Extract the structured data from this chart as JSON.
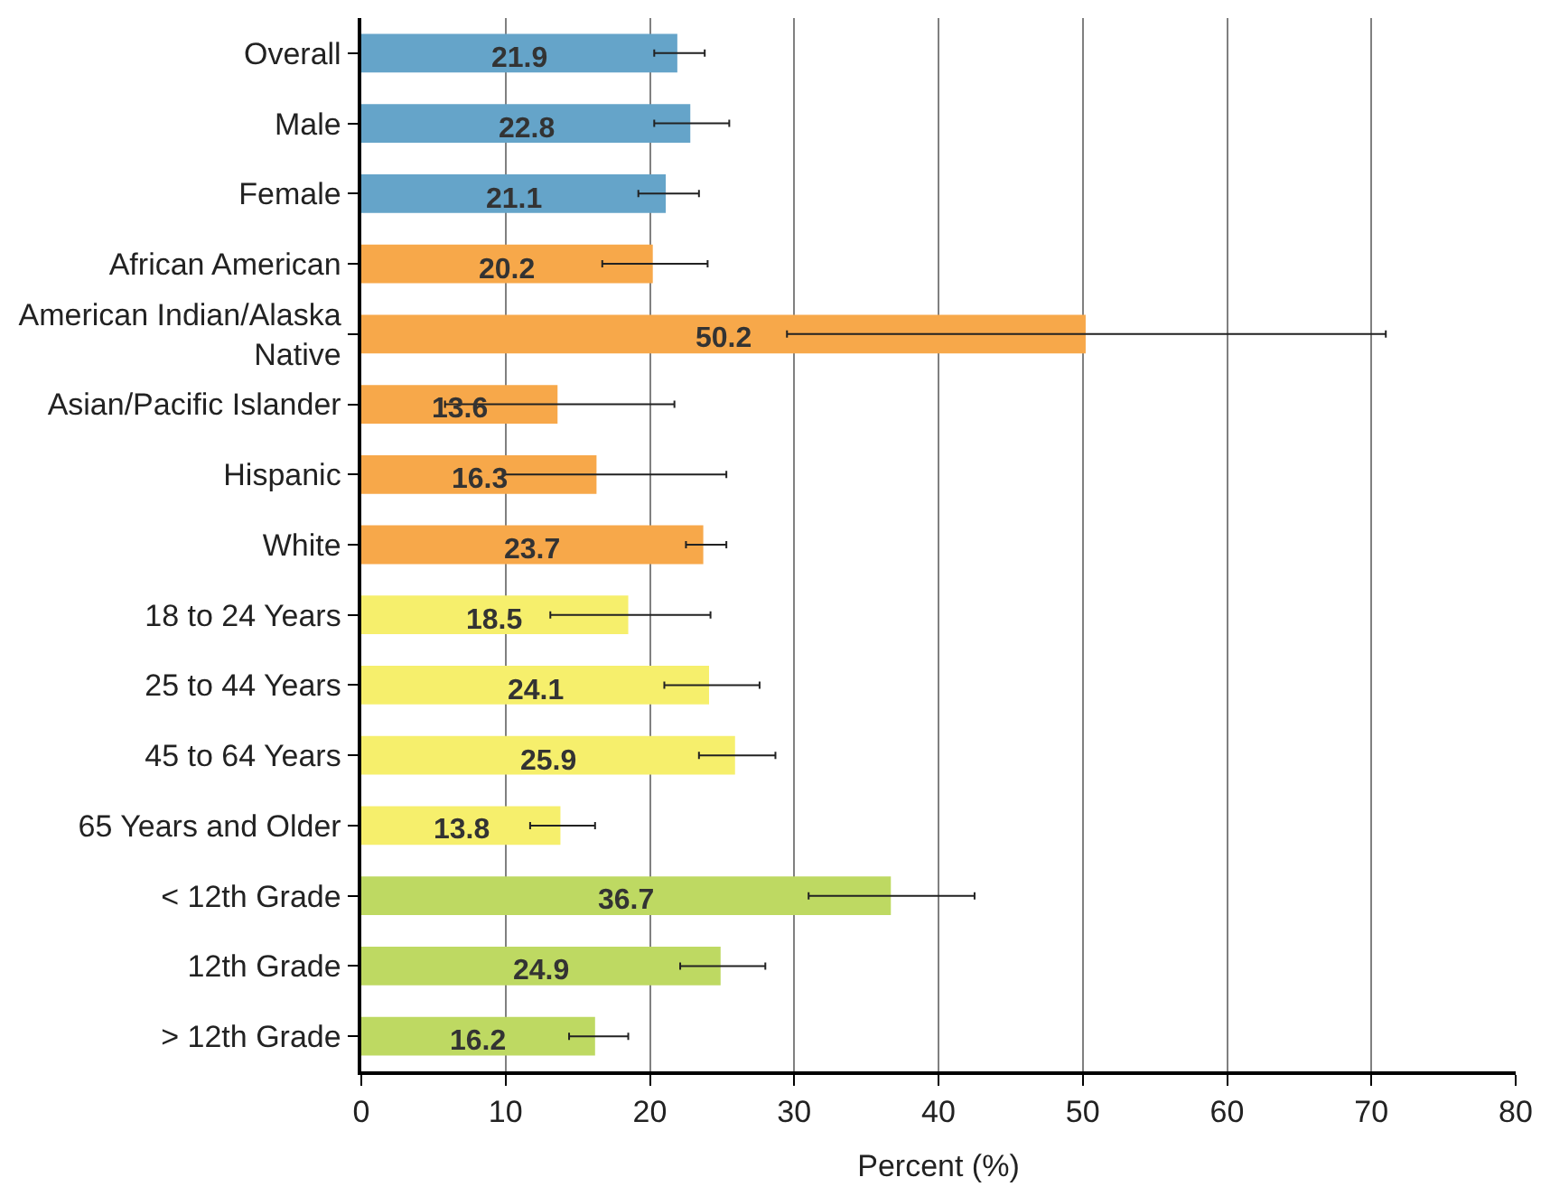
{
  "chart_data": {
    "type": "bar",
    "orientation": "horizontal",
    "xlabel": "Percent (%)",
    "categories": [
      "Overall",
      "Male",
      "Female",
      "African American",
      "American Indian/Alaska Native",
      "Asian/Pacific Islander",
      "Hispanic",
      "White",
      "18 to 24 Years",
      "25 to 44 Years",
      "45 to 64 Years",
      "65 Years and Older",
      "< 12th Grade",
      "12th Grade",
      "> 12th Grade"
    ],
    "values": [
      21.9,
      22.8,
      21.1,
      20.2,
      50.2,
      13.6,
      16.3,
      23.7,
      18.5,
      24.1,
      25.9,
      13.8,
      36.7,
      24.9,
      16.2
    ],
    "colors": [
      "#65a4c9",
      "#65a4c9",
      "#65a4c9",
      "#f7a84a",
      "#f7a84a",
      "#f7a84a",
      "#f7a84a",
      "#f7a84a",
      "#f6ef6c",
      "#f6ef6c",
      "#f6ef6c",
      "#f6ef6c",
      "#bed962",
      "#bed962",
      "#bed962"
    ],
    "errors": [
      [
        20.3,
        23.8
      ],
      [
        20.3,
        25.5
      ],
      [
        19.2,
        23.4
      ],
      [
        16.7,
        24.0
      ],
      [
        29.5,
        71.0
      ],
      [
        5.8,
        21.7
      ],
      [
        9.8,
        25.3
      ],
      [
        22.5,
        25.3
      ],
      [
        13.1,
        24.2
      ],
      [
        21.0,
        27.6
      ],
      [
        23.4,
        28.7
      ],
      [
        11.7,
        16.2
      ],
      [
        31.0,
        42.5
      ],
      [
        22.1,
        28.0
      ],
      [
        14.4,
        18.5
      ]
    ],
    "xlim": [
      0,
      80
    ],
    "xticks": [
      0,
      10,
      20,
      30,
      40,
      50,
      60,
      70,
      80
    ],
    "grid": "x",
    "data_labels": true
  }
}
